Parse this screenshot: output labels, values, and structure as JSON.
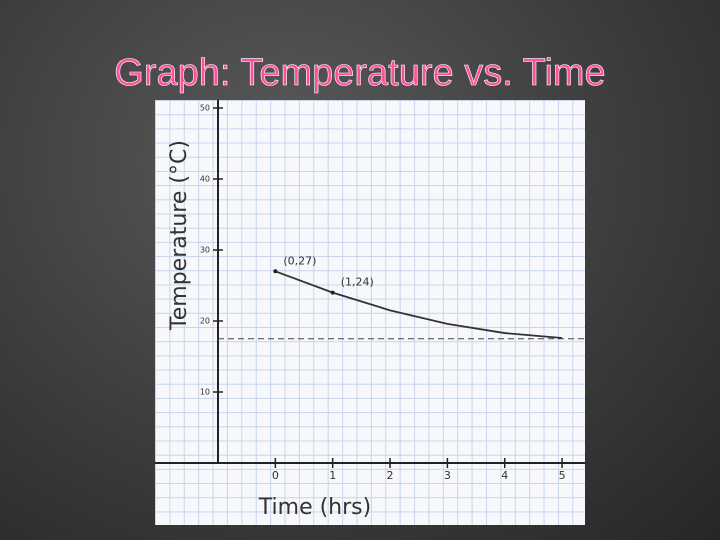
{
  "chart_data": {
    "type": "line",
    "title": "Graph: Temperature vs. Time",
    "x_label": "Time (hrs)",
    "y_label": "Temperature (°C)",
    "x": [
      0,
      1,
      2,
      3,
      4,
      5
    ],
    "series": [
      {
        "color": "#333333",
        "values": [
          27,
          24,
          21.5,
          19.6,
          18.3,
          17.6
        ]
      }
    ],
    "annotations": [
      "(0,27)",
      "(1,24)"
    ],
    "hline": 17.5,
    "xlim": [
      -1,
      5.4
    ],
    "ylim": [
      0,
      50
    ],
    "xticks": [
      0,
      1,
      2,
      3,
      4,
      5
    ],
    "yticks": [
      10,
      20,
      30,
      40,
      50
    ]
  }
}
